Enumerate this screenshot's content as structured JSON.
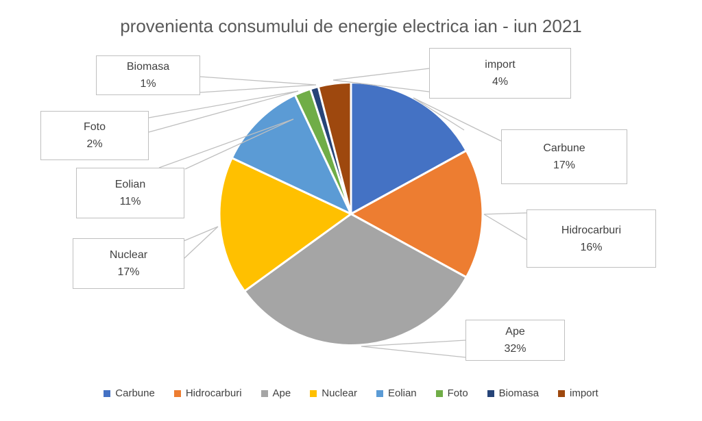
{
  "chart_data": {
    "type": "pie",
    "title": "provenienta consumului de energie electrica ian - iun 2021",
    "legend_position": "bottom",
    "total": 100,
    "slices": [
      {
        "id": "carbune",
        "name": "Carbune",
        "value": 17,
        "pct": "17%",
        "color": "#4472C4"
      },
      {
        "id": "hidrocarburi",
        "name": "Hidrocarburi",
        "value": 16,
        "pct": "16%",
        "color": "#ED7D31"
      },
      {
        "id": "ape",
        "name": "Ape",
        "value": 32,
        "pct": "32%",
        "color": "#A5A5A5"
      },
      {
        "id": "nuclear",
        "name": "Nuclear",
        "value": 17,
        "pct": "17%",
        "color": "#FFC000"
      },
      {
        "id": "eolian",
        "name": "Eolian",
        "value": 11,
        "pct": "11%",
        "color": "#5B9BD5"
      },
      {
        "id": "foto",
        "name": "Foto",
        "value": 2,
        "pct": "2%",
        "color": "#70AD47"
      },
      {
        "id": "biomasa",
        "name": "Biomasa",
        "value": 1,
        "pct": "1%",
        "color": "#264478"
      },
      {
        "id": "import",
        "name": "import",
        "value": 4,
        "pct": "4%",
        "color": "#9E480E"
      }
    ]
  },
  "styles": {
    "background": "#FFFFFF",
    "title_color": "#595959",
    "label_color": "#404040",
    "callout_border_color": "#BFBFBF",
    "leader_line_color": "#BFBFBF",
    "slice_border_color": "#FFFFFF"
  }
}
